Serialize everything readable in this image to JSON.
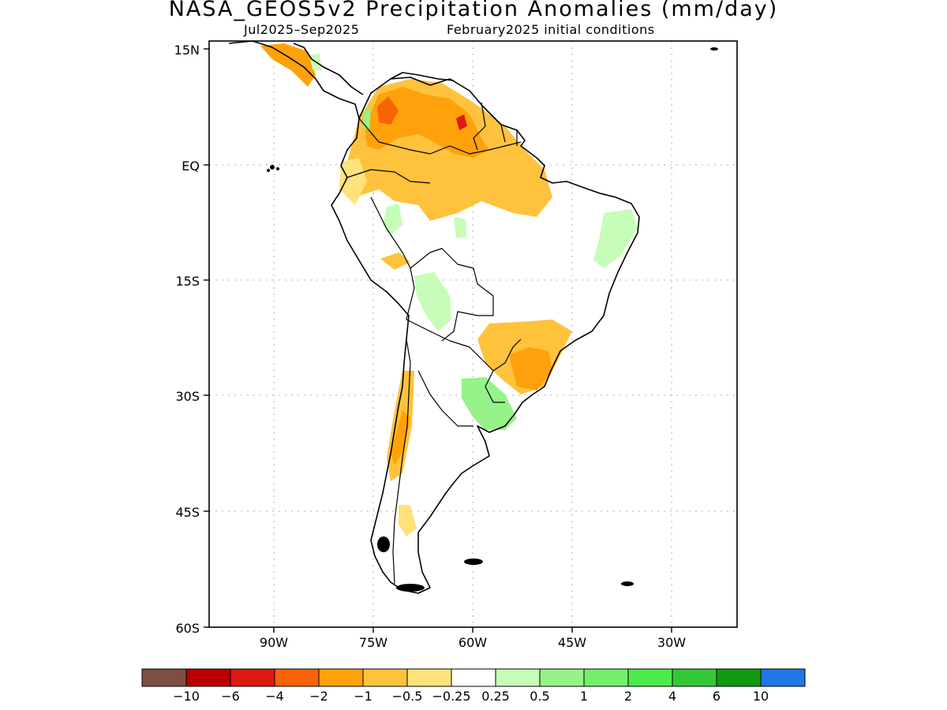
{
  "title": "NASA_GEOS5v2 Precipitation Anomalies (mm/day)",
  "subtitle_left": "Jul2025–Sep2025",
  "subtitle_right": "February2025 initial conditions",
  "y_ticks": [
    "15N",
    "EQ",
    "15S",
    "30S",
    "45S",
    "60S"
  ],
  "x_ticks": [
    "90W",
    "75W",
    "60W",
    "45W",
    "30W"
  ],
  "colorbar": {
    "colors": [
      "#7b4f44",
      "#b80000",
      "#dd1a0f",
      "#f86305",
      "#ffa10a",
      "#ffc23c",
      "#ffe27b",
      "#ffffff",
      "#c6fdb8",
      "#95f38a",
      "#75ee6b",
      "#4cea4a",
      "#33c936",
      "#0f9a10",
      "#2078e6"
    ],
    "labels": [
      "−10",
      "−6",
      "−4",
      "−2",
      "−1",
      "−0.5",
      "−0.25",
      "0.25",
      "0.5",
      "1",
      "2",
      "4",
      "6",
      "10"
    ]
  }
}
